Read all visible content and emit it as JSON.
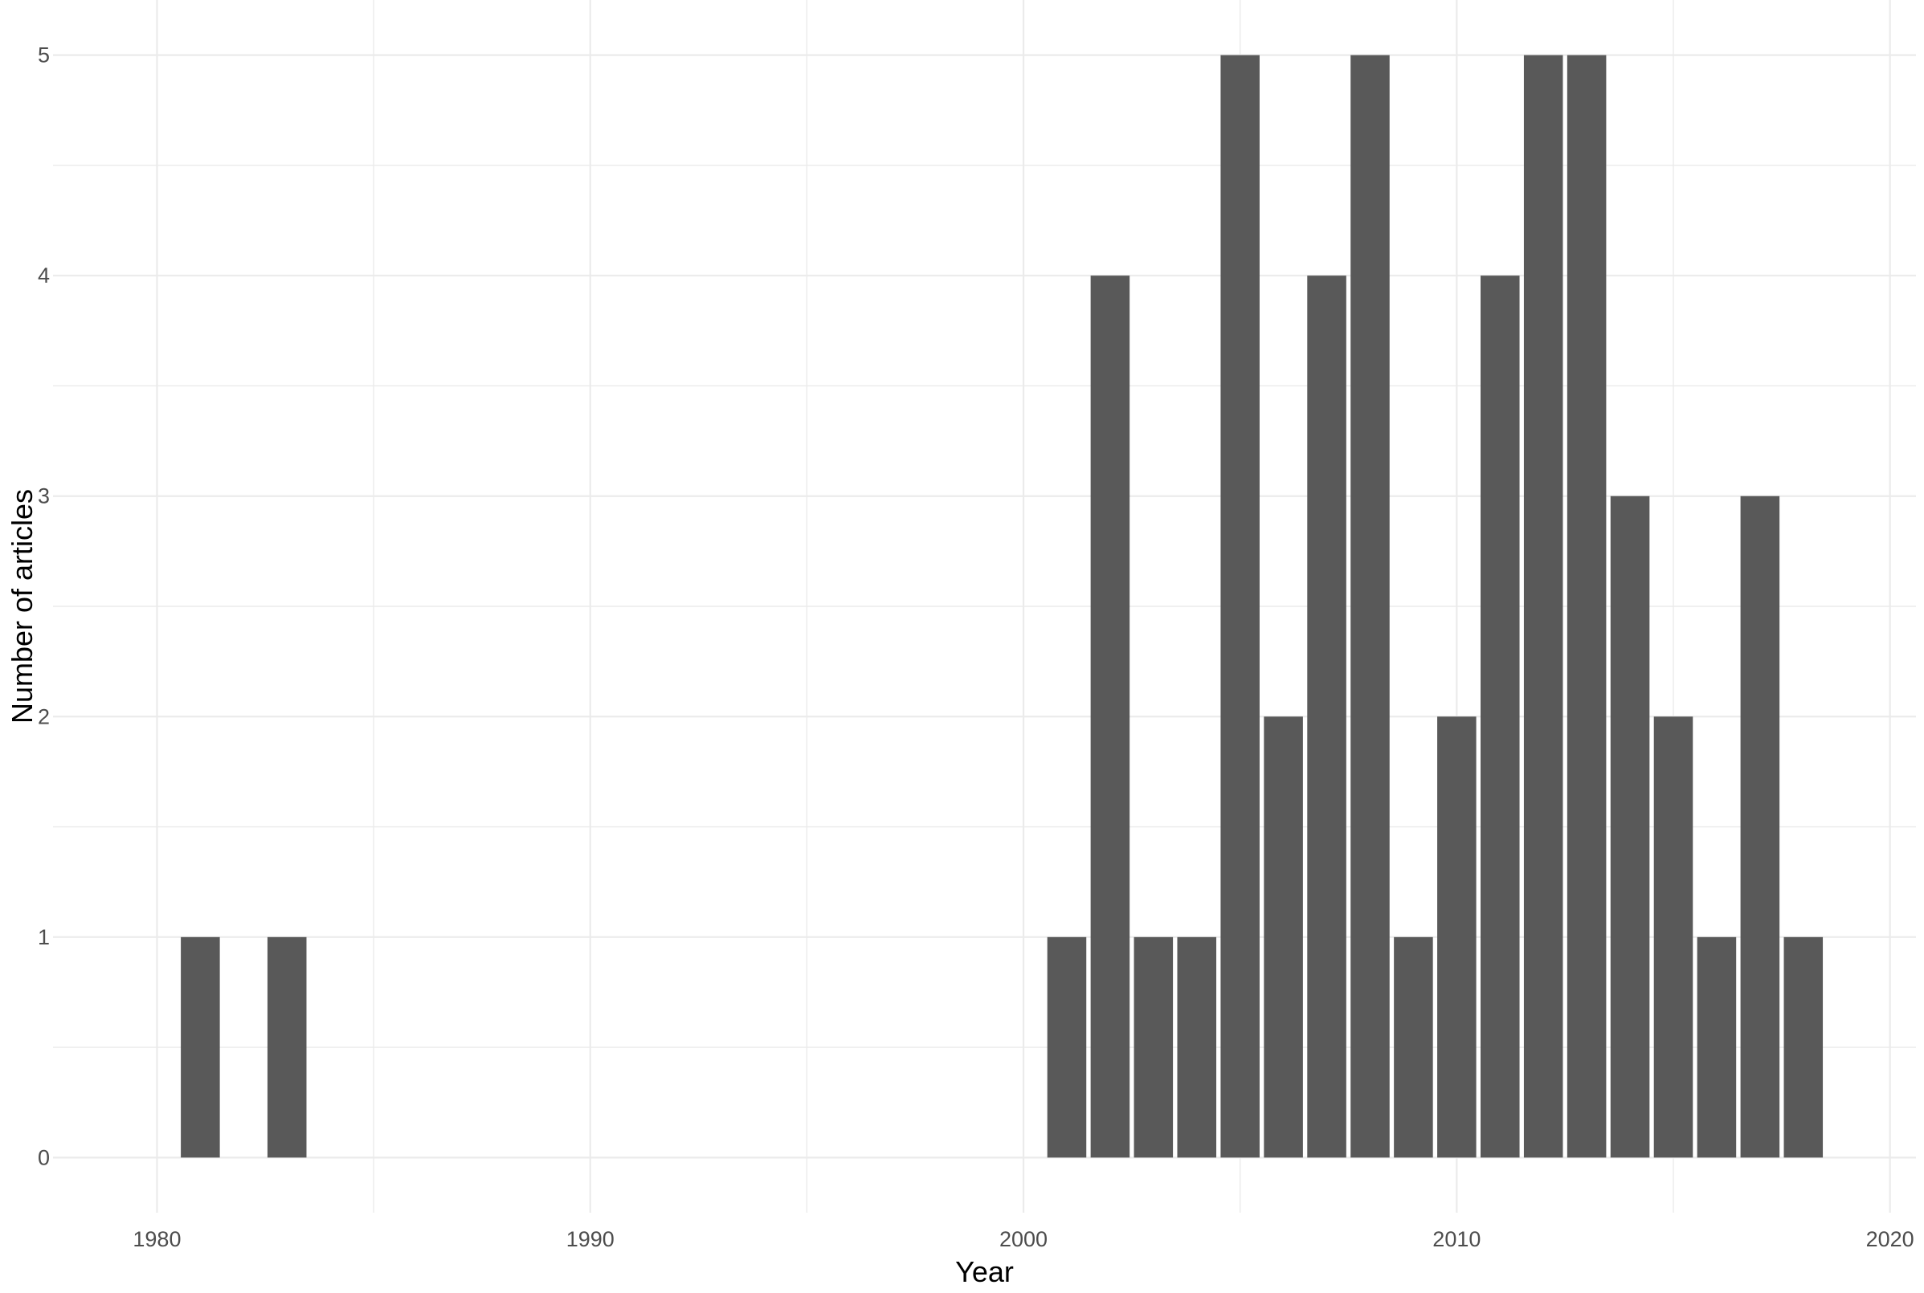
{
  "chart_data": {
    "type": "bar",
    "title": "",
    "xlabel": "Year",
    "ylabel": "Number of articles",
    "x": [
      1981,
      1983,
      2001,
      2002,
      2003,
      2004,
      2005,
      2006,
      2007,
      2008,
      2009,
      2010,
      2011,
      2012,
      2013,
      2014,
      2015,
      2016,
      2017,
      2018
    ],
    "values": [
      1,
      1,
      1,
      4,
      1,
      1,
      5,
      2,
      4,
      5,
      1,
      2,
      4,
      5,
      5,
      3,
      2,
      1,
      3,
      1
    ],
    "xlim": [
      1977.6,
      2020.6
    ],
    "ylim": [
      -0.25,
      5.25
    ],
    "xticks": [
      "1980",
      "1990",
      "2000",
      "2010",
      "2020"
    ],
    "yticks": [
      "0",
      "1",
      "2",
      "3",
      "4",
      "5"
    ],
    "grid": true,
    "legend": "none",
    "bar_color": "#595959",
    "grid_color": "#ebebeb"
  }
}
